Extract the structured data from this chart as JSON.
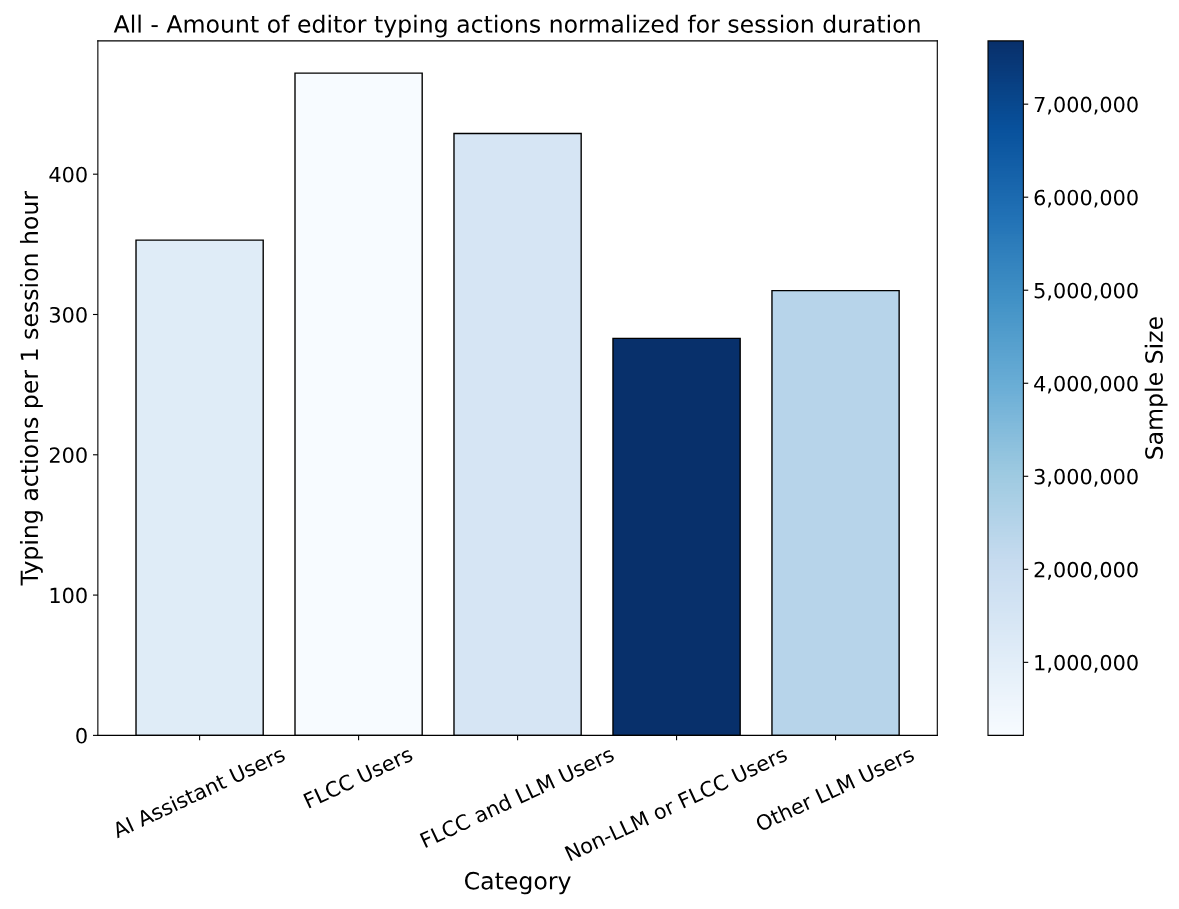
{
  "chart_data": {
    "type": "bar",
    "title": "All - Amount of editor typing actions normalized for session duration",
    "xlabel": "Category",
    "ylabel": "Typing actions per 1 session hour",
    "clabel": "Sample Size",
    "categories": [
      "AI Assistant Users",
      "FLCC Users",
      "FLCC and LLM Users",
      "Non-LLM or FLCC Users",
      "Other LLM Users"
    ],
    "values": [
      353,
      472,
      429,
      283,
      317
    ],
    "cvalues": [
      1100000,
      215000,
      1480000,
      7680000,
      2450000
    ],
    "clim": [
      215000,
      7680000
    ],
    "cticks": [
      {
        "value": 1000000,
        "label": "1,000,000"
      },
      {
        "value": 2000000,
        "label": "2,000,000"
      },
      {
        "value": 3000000,
        "label": "3,000,000"
      },
      {
        "value": 4000000,
        "label": "4,000,000"
      },
      {
        "value": 5000000,
        "label": "5,000,000"
      },
      {
        "value": 6000000,
        "label": "6,000,000"
      },
      {
        "value": 7000000,
        "label": "7,000,000"
      }
    ],
    "ylim": [
      0,
      495
    ],
    "yticks": [
      0,
      100,
      200,
      300,
      400
    ],
    "grid": false,
    "legend": false
  }
}
